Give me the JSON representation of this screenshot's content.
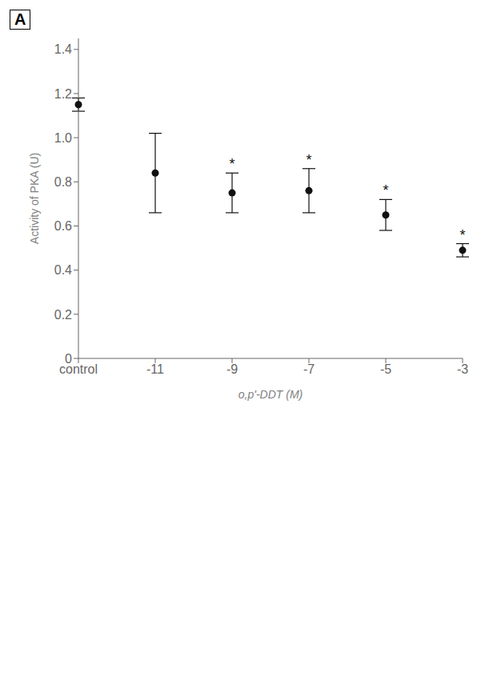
{
  "chart_data": {
    "type": "scatter",
    "title": "A",
    "categories": [
      "control",
      "-11",
      "-9",
      "-7",
      "-5",
      "-3"
    ],
    "values": [
      1.15,
      0.84,
      0.75,
      0.76,
      0.65,
      0.49
    ],
    "errors": [
      0.03,
      0.18,
      0.09,
      0.1,
      0.07,
      0.03
    ],
    "color": "#111111",
    "marker": "circle",
    "x_label": "o,p'-DDT (M)",
    "y_label": "Activity of PKA (U)",
    "ylim": [
      0,
      1.45
    ],
    "yticks": [
      0,
      0.2,
      0.4,
      0.6,
      0.8,
      {
        "value": 1.0,
        "label": "1.0"
      },
      1.2,
      1.4
    ],
    "grid": false,
    "annotations": [
      {
        "x": "-9",
        "text": "*"
      },
      {
        "x": "-7",
        "text": "*"
      },
      {
        "x": "-5",
        "text": "*"
      },
      {
        "x": "-3",
        "text": "*"
      }
    ]
  }
}
